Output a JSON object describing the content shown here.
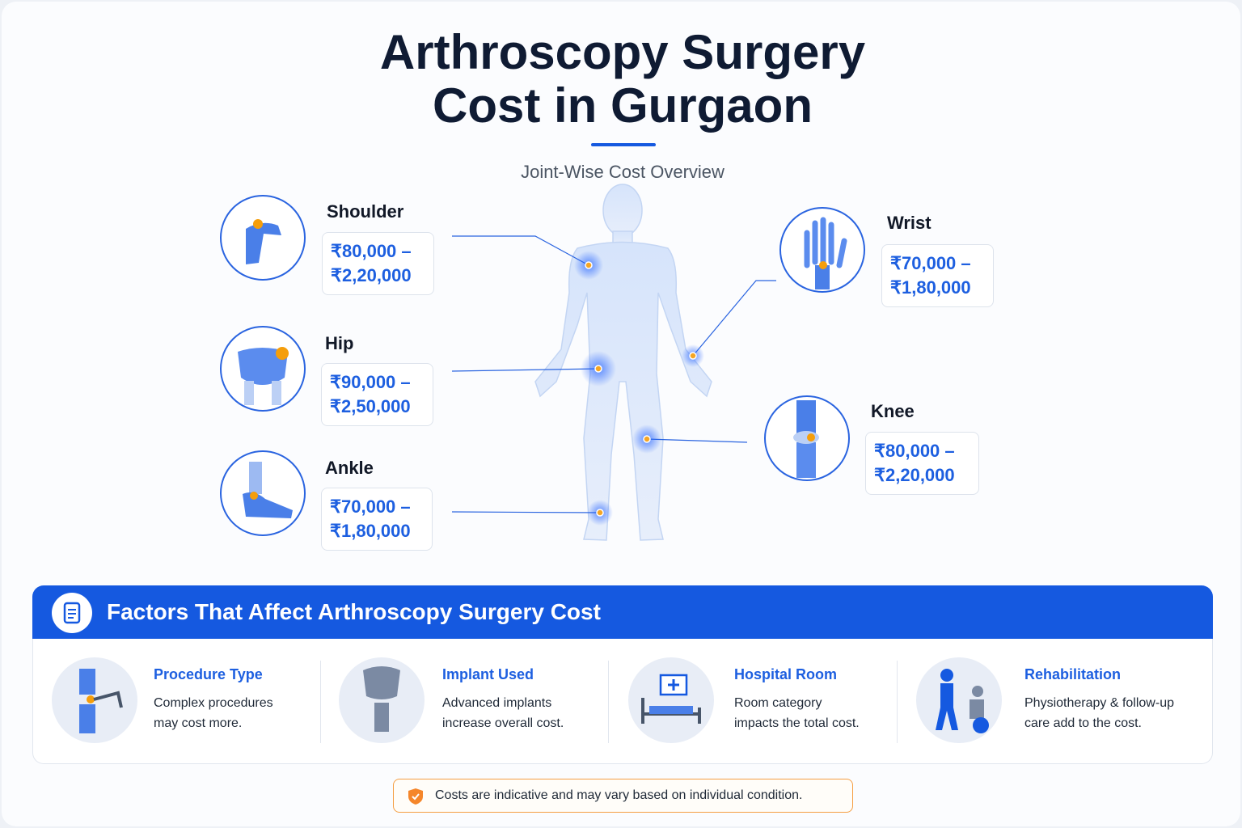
{
  "header": {
    "title_lines": [
      "Arthroscopy Surgery",
      "Cost in Gurgaon"
    ],
    "subtitle": "Joint-Wise Cost Overview"
  },
  "joints": [
    {
      "name": "Shoulder",
      "cost_lines": [
        "₹80,000 –",
        "₹2,20,000"
      ]
    },
    {
      "name": "Hip",
      "cost_lines": [
        "₹90,000 –",
        "₹2,50,000"
      ]
    },
    {
      "name": "Ankle",
      "cost_lines": [
        "₹70,000 –",
        "₹1,80,000"
      ]
    },
    {
      "name": "Wrist",
      "cost_lines": [
        "₹70,000 –",
        "₹1,80,000"
      ]
    },
    {
      "name": "Knee",
      "cost_lines": [
        "₹80,000 –",
        "₹2,20,000"
      ]
    }
  ],
  "factors": {
    "title": "Factors That Affect Arthroscopy Surgery Cost",
    "items": [
      {
        "title": "Procedure Type",
        "desc_lines": [
          "Complex procedures",
          "may cost more."
        ]
      },
      {
        "title": "Implant Used",
        "desc_lines": [
          "Advanced implants",
          "increase overall cost."
        ]
      },
      {
        "title": "Hospital Room",
        "desc_lines": [
          "Room category",
          "impacts the total cost."
        ]
      },
      {
        "title": "Rehabilitation",
        "desc_lines": [
          "Physiotherapy & follow-up",
          "care add to the cost."
        ]
      }
    ]
  },
  "note": "Costs are indicative and may vary based on individual condition."
}
